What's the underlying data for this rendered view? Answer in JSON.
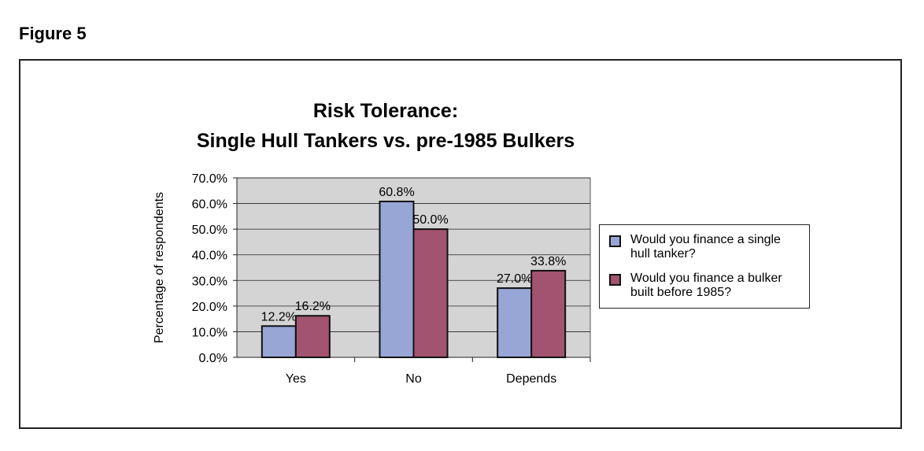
{
  "figure_label": "Figure 5",
  "chart_data": {
    "type": "bar",
    "title_line1": "Risk Tolerance:",
    "title_line2": "Single Hull Tankers vs. pre-1985 Bulkers",
    "categories": [
      "Yes",
      "No",
      "Depends"
    ],
    "series": [
      {
        "name": "Would you finance a single hull tanker?",
        "values": [
          12.2,
          60.8,
          27.0
        ],
        "labels": [
          "12.2%",
          "60.8%",
          "27.0%"
        ],
        "color": "#98A6D6"
      },
      {
        "name": "Would you finance a bulker built before 1985?",
        "values": [
          16.2,
          50.0,
          33.8
        ],
        "labels": [
          "16.2%",
          "50.0%",
          "33.8%"
        ],
        "color": "#A2536F"
      }
    ],
    "ylabel": "Percentage of respondents",
    "xlabel": "",
    "ylim": [
      0,
      70
    ],
    "yticks": [
      "0.0%",
      "10.0%",
      "20.0%",
      "30.0%",
      "40.0%",
      "50.0%",
      "60.0%",
      "70.0%"
    ],
    "plot_background": "#D4D4D4",
    "grid": true,
    "legend_position": "right"
  }
}
